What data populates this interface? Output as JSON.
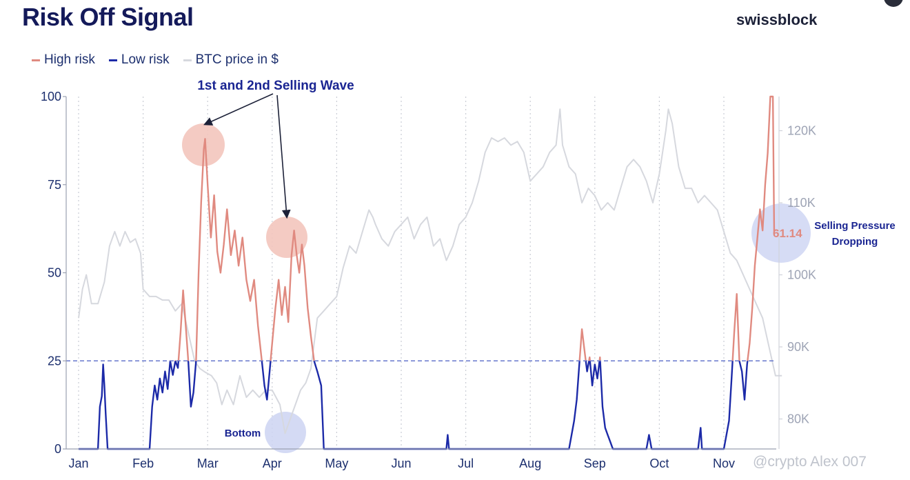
{
  "header": {
    "title": "Risk Off Signal",
    "brand": "swissblock"
  },
  "watermark": "@crypto Alex 007",
  "legend": [
    {
      "label": "High risk",
      "color": "#e08a80"
    },
    {
      "label": "Low risk",
      "color": "#1c2aa8"
    },
    {
      "label": "BTC price in $",
      "color": "#d6d8de"
    }
  ],
  "colors": {
    "high_risk": "#e08a80",
    "low_risk": "#1c2aa8",
    "btc_price": "#d6d8de",
    "threshold_line": "#6677cc",
    "axis_text": "#1c2f6e",
    "right_axis_text": "#9ea4b5",
    "annotation_text": "#1a2592",
    "highlight_red": "#f3c5bd",
    "highlight_blue": "#ccd3f2"
  },
  "chart_data": {
    "type": "line",
    "x_labels": [
      "Jan",
      "Feb",
      "Mar",
      "Apr",
      "May",
      "Jun",
      "Jul",
      "Aug",
      "Sep",
      "Oct",
      "Nov"
    ],
    "y_left": {
      "min": 0,
      "max": 100,
      "ticks": [
        0,
        25,
        50,
        75,
        100
      ]
    },
    "y_right": {
      "min": 76000,
      "max": 124000,
      "ticks": [
        80000,
        90000,
        100000,
        110000,
        120000
      ],
      "tick_labels": [
        "80K",
        "90K",
        "100K",
        "110K",
        "120K"
      ]
    },
    "threshold": 25,
    "gridlines": "vertical dotted",
    "series": [
      {
        "name": "Risk Off Signal",
        "axis": "left",
        "note": "colored High risk above 25, Low risk at or below 25",
        "points": [
          [
            0,
            0
          ],
          [
            0.3,
            0
          ],
          [
            0.33,
            12
          ],
          [
            0.36,
            15
          ],
          [
            0.38,
            24
          ],
          [
            0.4,
            18
          ],
          [
            0.42,
            10
          ],
          [
            0.45,
            0
          ],
          [
            0.7,
            0
          ],
          [
            1.0,
            0
          ],
          [
            1.1,
            0
          ],
          [
            1.14,
            12
          ],
          [
            1.18,
            18
          ],
          [
            1.22,
            14
          ],
          [
            1.26,
            20
          ],
          [
            1.3,
            16
          ],
          [
            1.34,
            22
          ],
          [
            1.38,
            17
          ],
          [
            1.42,
            25
          ],
          [
            1.46,
            21
          ],
          [
            1.5,
            25
          ],
          [
            1.54,
            23
          ],
          [
            1.58,
            33
          ],
          [
            1.62,
            45
          ],
          [
            1.66,
            35
          ],
          [
            1.7,
            25
          ],
          [
            1.74,
            12
          ],
          [
            1.78,
            16
          ],
          [
            1.82,
            25
          ],
          [
            1.86,
            50
          ],
          [
            1.9,
            70
          ],
          [
            1.94,
            85
          ],
          [
            1.96,
            88
          ],
          [
            2.0,
            75
          ],
          [
            2.05,
            60
          ],
          [
            2.1,
            72
          ],
          [
            2.15,
            56
          ],
          [
            2.2,
            50
          ],
          [
            2.25,
            58
          ],
          [
            2.3,
            68
          ],
          [
            2.36,
            55
          ],
          [
            2.42,
            62
          ],
          [
            2.48,
            52
          ],
          [
            2.54,
            60
          ],
          [
            2.6,
            48
          ],
          [
            2.66,
            42
          ],
          [
            2.72,
            48
          ],
          [
            2.78,
            35
          ],
          [
            2.84,
            25
          ],
          [
            2.88,
            18
          ],
          [
            2.92,
            14
          ],
          [
            2.96,
            22
          ],
          [
            3.0,
            30
          ],
          [
            3.05,
            40
          ],
          [
            3.1,
            48
          ],
          [
            3.15,
            38
          ],
          [
            3.2,
            46
          ],
          [
            3.25,
            36
          ],
          [
            3.3,
            55
          ],
          [
            3.34,
            62
          ],
          [
            3.38,
            55
          ],
          [
            3.42,
            50
          ],
          [
            3.46,
            58
          ],
          [
            3.5,
            52
          ],
          [
            3.55,
            40
          ],
          [
            3.6,
            32
          ],
          [
            3.65,
            25
          ],
          [
            3.7,
            22
          ],
          [
            3.76,
            18
          ],
          [
            3.8,
            0
          ],
          [
            4.0,
            0
          ],
          [
            5.7,
            0
          ],
          [
            5.72,
            4
          ],
          [
            5.74,
            0
          ],
          [
            7.0,
            0
          ],
          [
            7.6,
            0
          ],
          [
            7.64,
            4
          ],
          [
            7.68,
            8
          ],
          [
            7.72,
            14
          ],
          [
            7.76,
            24
          ],
          [
            7.8,
            34
          ],
          [
            7.84,
            28
          ],
          [
            7.88,
            22
          ],
          [
            7.92,
            26
          ],
          [
            7.96,
            18
          ],
          [
            8.0,
            24
          ],
          [
            8.04,
            20
          ],
          [
            8.08,
            26
          ],
          [
            8.12,
            12
          ],
          [
            8.16,
            6
          ],
          [
            8.2,
            4
          ],
          [
            8.24,
            2
          ],
          [
            8.28,
            0
          ],
          [
            8.8,
            0
          ],
          [
            8.84,
            4
          ],
          [
            8.88,
            0
          ],
          [
            9.6,
            0
          ],
          [
            9.64,
            6
          ],
          [
            9.66,
            0
          ],
          [
            10.0,
            0
          ],
          [
            10.08,
            8
          ],
          [
            10.12,
            20
          ],
          [
            10.16,
            33
          ],
          [
            10.2,
            44
          ],
          [
            10.24,
            25
          ],
          [
            10.28,
            22
          ],
          [
            10.32,
            14
          ],
          [
            10.36,
            24
          ],
          [
            10.4,
            30
          ],
          [
            10.44,
            40
          ],
          [
            10.48,
            52
          ],
          [
            10.52,
            60
          ],
          [
            10.56,
            68
          ],
          [
            10.6,
            62
          ],
          [
            10.64,
            75
          ],
          [
            10.68,
            84
          ],
          [
            10.72,
            100
          ],
          [
            10.76,
            100
          ],
          [
            10.78,
            61.14
          ]
        ]
      },
      {
        "name": "BTC price in $",
        "axis": "right",
        "points": [
          [
            0,
            94000
          ],
          [
            0.06,
            98000
          ],
          [
            0.12,
            100000
          ],
          [
            0.2,
            96000
          ],
          [
            0.3,
            96000
          ],
          [
            0.4,
            99000
          ],
          [
            0.48,
            104000
          ],
          [
            0.56,
            106000
          ],
          [
            0.64,
            104000
          ],
          [
            0.72,
            106000
          ],
          [
            0.8,
            104500
          ],
          [
            0.88,
            105000
          ],
          [
            0.96,
            103000
          ],
          [
            1.0,
            98000
          ],
          [
            1.1,
            97000
          ],
          [
            1.2,
            97000
          ],
          [
            1.3,
            96500
          ],
          [
            1.4,
            96500
          ],
          [
            1.5,
            95000
          ],
          [
            1.6,
            96000
          ],
          [
            1.7,
            92000
          ],
          [
            1.8,
            88000
          ],
          [
            1.88,
            87000
          ],
          [
            1.96,
            86500
          ],
          [
            2.06,
            86000
          ],
          [
            2.14,
            85000
          ],
          [
            2.22,
            82000
          ],
          [
            2.3,
            84000
          ],
          [
            2.4,
            82000
          ],
          [
            2.5,
            86000
          ],
          [
            2.6,
            83000
          ],
          [
            2.7,
            84000
          ],
          [
            2.8,
            83000
          ],
          [
            2.9,
            84000
          ],
          [
            3.0,
            84000
          ],
          [
            3.06,
            83000
          ],
          [
            3.12,
            82000
          ],
          [
            3.2,
            78000
          ],
          [
            3.28,
            80000
          ],
          [
            3.36,
            82000
          ],
          [
            3.44,
            84000
          ],
          [
            3.52,
            85000
          ],
          [
            3.6,
            87000
          ],
          [
            3.7,
            94000
          ],
          [
            3.8,
            95000
          ],
          [
            3.9,
            96000
          ],
          [
            4.0,
            97000
          ],
          [
            4.1,
            101000
          ],
          [
            4.2,
            104000
          ],
          [
            4.3,
            103000
          ],
          [
            4.4,
            106000
          ],
          [
            4.5,
            109000
          ],
          [
            4.56,
            108000
          ],
          [
            4.6,
            107000
          ],
          [
            4.7,
            105000
          ],
          [
            4.8,
            104000
          ],
          [
            4.9,
            106000
          ],
          [
            5.0,
            107000
          ],
          [
            5.1,
            108000
          ],
          [
            5.2,
            105000
          ],
          [
            5.3,
            107000
          ],
          [
            5.4,
            108000
          ],
          [
            5.5,
            104000
          ],
          [
            5.6,
            105000
          ],
          [
            5.7,
            102000
          ],
          [
            5.8,
            104000
          ],
          [
            5.9,
            107000
          ],
          [
            6.0,
            108000
          ],
          [
            6.1,
            110000
          ],
          [
            6.2,
            113000
          ],
          [
            6.3,
            117000
          ],
          [
            6.4,
            119000
          ],
          [
            6.5,
            118500
          ],
          [
            6.6,
            119000
          ],
          [
            6.7,
            118000
          ],
          [
            6.8,
            118500
          ],
          [
            6.9,
            117000
          ],
          [
            7.0,
            113000
          ],
          [
            7.1,
            114000
          ],
          [
            7.2,
            115000
          ],
          [
            7.3,
            117000
          ],
          [
            7.4,
            118000
          ],
          [
            7.46,
            123000
          ],
          [
            7.5,
            118000
          ],
          [
            7.6,
            115000
          ],
          [
            7.7,
            114000
          ],
          [
            7.8,
            110000
          ],
          [
            7.9,
            112000
          ],
          [
            8.0,
            111000
          ],
          [
            8.1,
            109000
          ],
          [
            8.2,
            110000
          ],
          [
            8.3,
            109000
          ],
          [
            8.4,
            112000
          ],
          [
            8.5,
            115000
          ],
          [
            8.6,
            116000
          ],
          [
            8.7,
            115000
          ],
          [
            8.8,
            113000
          ],
          [
            8.9,
            110000
          ],
          [
            9.0,
            114000
          ],
          [
            9.1,
            120000
          ],
          [
            9.14,
            123000
          ],
          [
            9.2,
            121000
          ],
          [
            9.3,
            115000
          ],
          [
            9.4,
            112000
          ],
          [
            9.5,
            112000
          ],
          [
            9.6,
            110000
          ],
          [
            9.7,
            111000
          ],
          [
            9.8,
            110000
          ],
          [
            9.9,
            109000
          ],
          [
            10.0,
            106000
          ],
          [
            10.1,
            103000
          ],
          [
            10.2,
            102000
          ],
          [
            10.3,
            100000
          ],
          [
            10.4,
            98000
          ],
          [
            10.5,
            96000
          ],
          [
            10.6,
            94000
          ],
          [
            10.7,
            90000
          ],
          [
            10.8,
            86000
          ],
          [
            10.9,
            86000
          ]
        ]
      }
    ],
    "current_value_label": "61.14",
    "annotations": [
      {
        "text": "1st and 2nd Selling Wave"
      },
      {
        "text": "Bottom"
      },
      {
        "text_lines": [
          "Selling Pressure",
          "Dropping"
        ]
      }
    ]
  }
}
